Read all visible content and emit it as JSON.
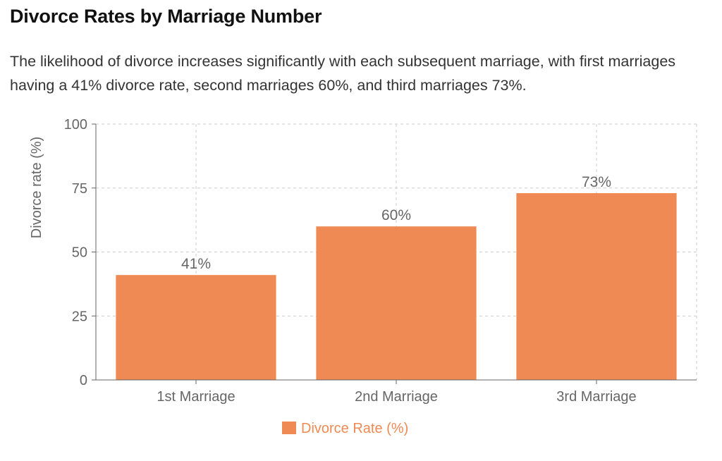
{
  "title": "Divorce Rates by Marriage Number",
  "subtitle": "The likelihood of divorce increases significantly with each subsequent marriage, with first marriages having a 41% divorce rate, second marriages 60%, and third marriages 73%.",
  "chart_data": {
    "type": "bar",
    "categories": [
      "1st Marriage",
      "2nd Marriage",
      "3rd Marriage"
    ],
    "series": [
      {
        "name": "Divorce Rate (%)",
        "values": [
          41,
          60,
          73
        ],
        "color": "#ef8a54"
      }
    ],
    "data_labels": [
      "41%",
      "60%",
      "73%"
    ],
    "ylabel": "Divorce rate (%)",
    "xlabel": "",
    "ylim": [
      0,
      100
    ],
    "yticks": [
      0,
      25,
      50,
      75,
      100
    ],
    "grid": true,
    "legend": "bottom-center"
  }
}
